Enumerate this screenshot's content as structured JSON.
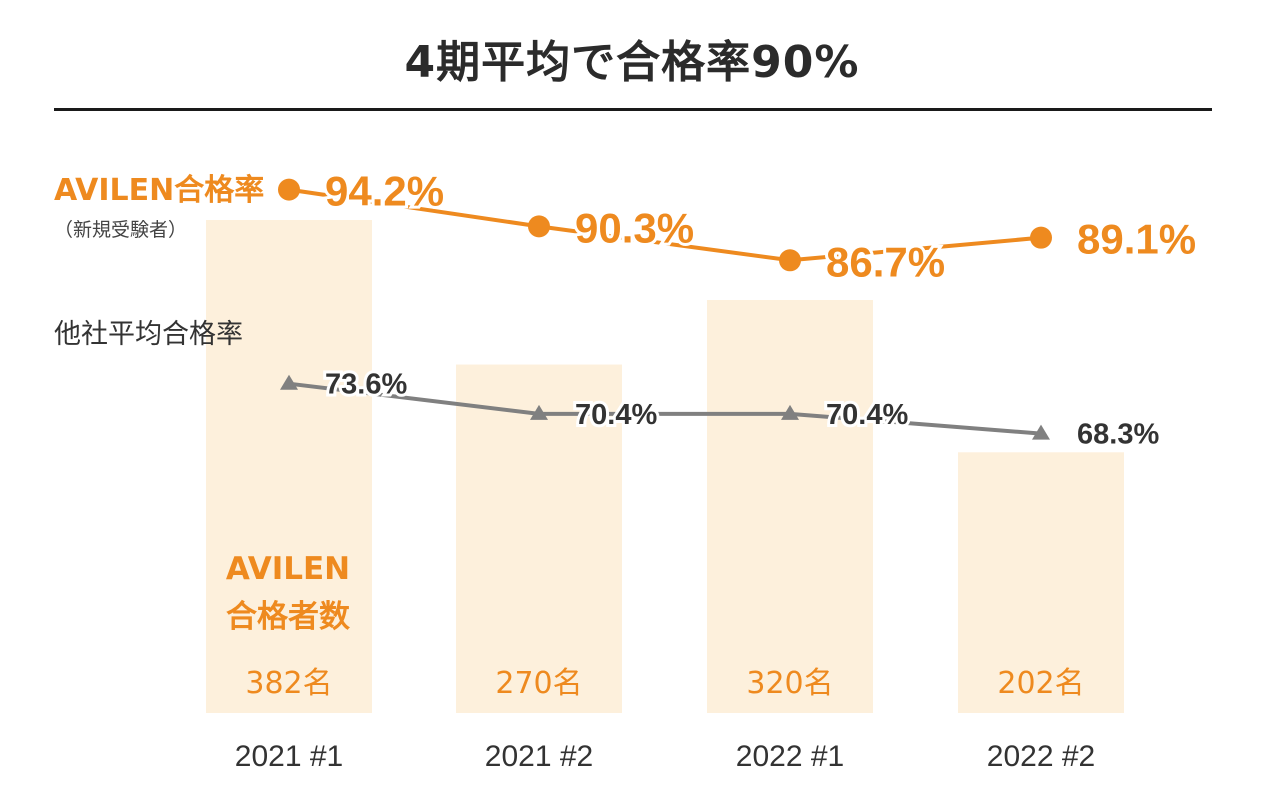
{
  "title": "4期平均で合格率90%",
  "labels": {
    "avilen_rate": "AVILEN合格率",
    "avilen_rate_note": "（新規受験者）",
    "other_rate": "他社平均合格率",
    "count_line1": "AVILEN",
    "count_line2": "合格者数"
  },
  "colors": {
    "accent": "#ee8a1f",
    "bar_fill": "#fdf0dc",
    "gray_line": "#808080",
    "text_dark": "#2b2b2b"
  },
  "chart_data": {
    "type": "bar",
    "categories": [
      "2021 #1",
      "2021 #2",
      "2022 #1",
      "2022 #2"
    ],
    "series": [
      {
        "name": "AVILEN合格者数",
        "type": "bar",
        "values": [
          382,
          270,
          320,
          202
        ],
        "labels": [
          "382名",
          "270名",
          "320名",
          "202名"
        ]
      },
      {
        "name": "AVILEN合格率",
        "type": "line",
        "values": [
          94.2,
          90.3,
          86.7,
          89.1
        ],
        "labels": [
          "94.2%",
          "90.3%",
          "86.7%",
          "89.1%"
        ],
        "marker": "circle"
      },
      {
        "name": "他社平均合格率",
        "type": "line",
        "values": [
          73.6,
          70.4,
          70.4,
          68.3
        ],
        "labels": [
          "73.6%",
          "70.4%",
          "70.4%",
          "68.3%"
        ],
        "marker": "triangle"
      }
    ],
    "grid": false,
    "legend": "left"
  }
}
